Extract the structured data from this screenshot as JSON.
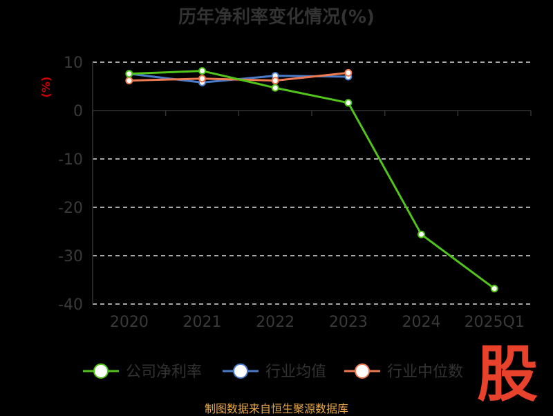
{
  "chart_data": {
    "type": "line",
    "title": "历年净利率变化情况(%)",
    "ylabel": "(%)",
    "categories": [
      "2020",
      "2021",
      "2022",
      "2023",
      "2024",
      "2025Q1"
    ],
    "ylim": [
      -40,
      10
    ],
    "yticks": [
      10,
      0,
      -10,
      -20,
      -30,
      -40
    ],
    "grid": true,
    "legend_position": "bottom",
    "series": [
      {
        "name": "公司净利率",
        "color": "#52c41a",
        "values": [
          7.6,
          8.2,
          4.7,
          1.6,
          -25.6,
          -36.8
        ]
      },
      {
        "name": "行业均值",
        "color": "#4a7cc9",
        "values": [
          7.6,
          5.8,
          7.2,
          7.0,
          null,
          null
        ]
      },
      {
        "name": "行业中位数",
        "color": "#f07a50",
        "values": [
          6.2,
          6.6,
          6.2,
          7.8,
          null,
          null
        ]
      }
    ]
  },
  "source": "制图数据来自恒生聚源数据库",
  "logo_text": "股"
}
